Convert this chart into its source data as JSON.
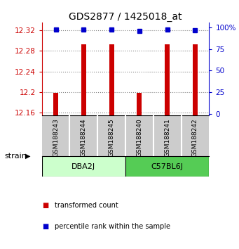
{
  "title": "GDS2877 / 1425018_at",
  "samples": [
    "GSM188243",
    "GSM188244",
    "GSM188245",
    "GSM188240",
    "GSM188241",
    "GSM188242"
  ],
  "groups": [
    {
      "label": "DBA2J",
      "indices": [
        0,
        1,
        2
      ],
      "color": "#ccffcc"
    },
    {
      "label": "C57BL6J",
      "indices": [
        3,
        4,
        5
      ],
      "color": "#55cc55"
    }
  ],
  "red_values": [
    12.198,
    12.292,
    12.292,
    12.198,
    12.292,
    12.292
  ],
  "blue_values": [
    98,
    98,
    98,
    96,
    98,
    97
  ],
  "ylim_left": [
    12.155,
    12.335
  ],
  "yticks_left": [
    12.16,
    12.2,
    12.24,
    12.28,
    12.32
  ],
  "ylim_right": [
    -2,
    106
  ],
  "yticks_right": [
    0,
    25,
    50,
    75,
    100
  ],
  "yticklabels_right": [
    "0",
    "25",
    "50",
    "75",
    "100%"
  ],
  "left_axis_color": "#cc0000",
  "right_axis_color": "#0000cc",
  "bar_color": "#cc0000",
  "dot_color": "#0000cc",
  "grid_color": "#888888",
  "bg_plot": "#ffffff",
  "bg_sample": "#cccccc",
  "legend_red_label": "transformed count",
  "legend_blue_label": "percentile rank within the sample",
  "strain_label": "strain"
}
